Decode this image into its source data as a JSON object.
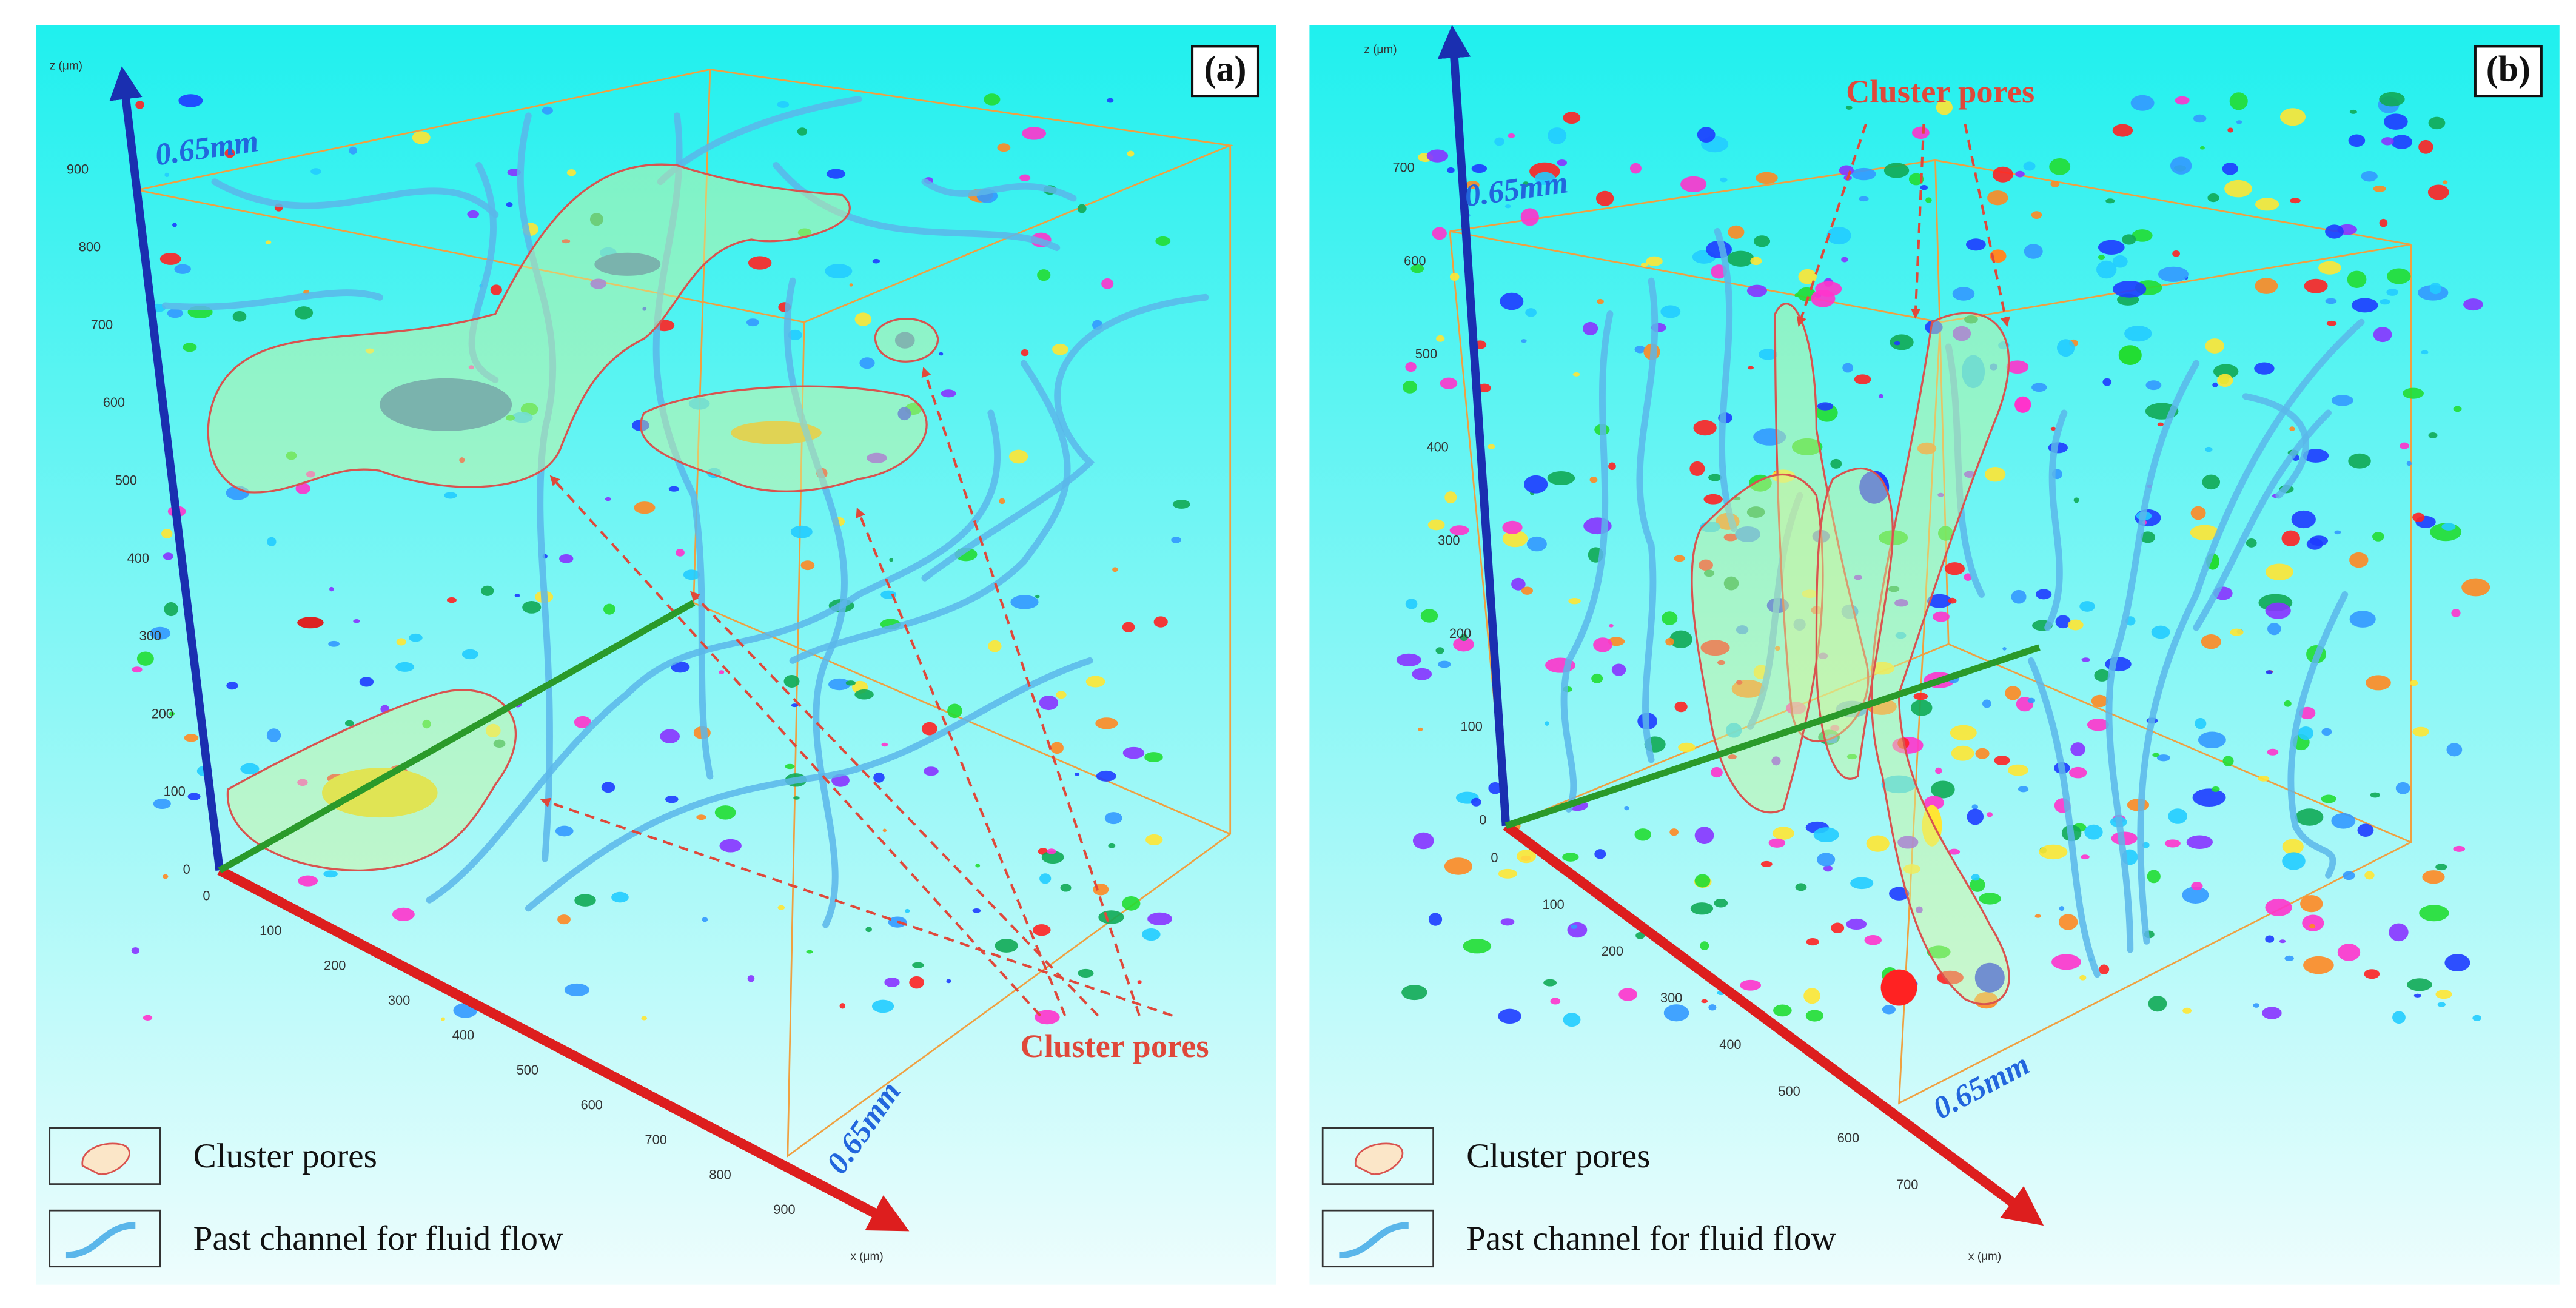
{
  "panels": [
    {
      "label": "(a)",
      "z_axis_label": "z (μm)",
      "x_axis_label": "x (μm)",
      "z_ticks": [
        0,
        100,
        200,
        300,
        400,
        500,
        600,
        700,
        800,
        900
      ],
      "x_ticks": [
        0,
        100,
        200,
        300,
        400,
        500,
        600,
        700,
        800,
        900
      ],
      "dimension_labels": [
        "0.65mm",
        "0.65mm"
      ],
      "annotation": "Cluster pores",
      "legend": [
        {
          "label": "Cluster pores"
        },
        {
          "label": "Past channel for fluid flow"
        }
      ]
    },
    {
      "label": "(b)",
      "z_axis_label": "z (μm)",
      "x_axis_label": "x (μm)",
      "z_ticks": [
        0,
        100,
        200,
        300,
        400,
        500,
        600,
        700
      ],
      "x_ticks": [
        0,
        100,
        200,
        300,
        400,
        500,
        600,
        700
      ],
      "dimension_labels": [
        "0.65mm",
        "0.65mm"
      ],
      "annotation": "Cluster pores",
      "legend": [
        {
          "label": "Cluster pores"
        },
        {
          "label": "Past channel for fluid flow"
        }
      ]
    }
  ]
}
